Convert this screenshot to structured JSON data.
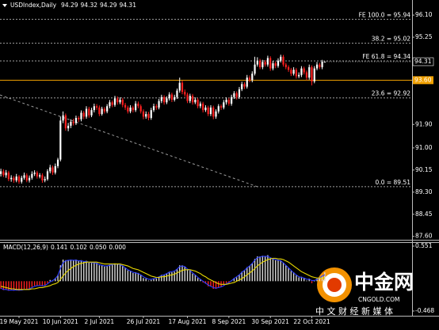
{
  "chart_data": {
    "type": "candlestick",
    "symbol": "USDIndex,Daily",
    "categories": [
      null,
      null,
      null,
      null,
      null,
      null,
      null,
      "19 May 2021",
      null,
      null,
      null,
      null,
      null,
      null,
      null,
      null,
      null,
      null,
      null,
      null,
      null,
      null,
      null,
      "10 Jun 2021",
      null,
      null,
      null,
      null,
      null,
      null,
      null,
      null,
      null,
      null,
      null,
      null,
      null,
      null,
      "2 Jul 2021",
      null,
      null,
      null,
      null,
      null,
      null,
      null,
      null,
      null,
      null,
      null,
      null,
      null,
      null,
      null,
      null,
      "26 Jul 2021",
      null,
      null,
      null,
      null,
      null,
      null,
      null,
      null,
      null,
      null,
      null,
      null,
      null,
      null,
      null,
      null,
      "17 Aug 2021",
      null,
      null,
      null,
      null,
      null,
      null,
      null,
      null,
      null,
      null,
      null,
      null,
      null,
      null,
      null,
      "8 Sep 2021",
      null,
      null,
      null,
      null,
      null,
      null,
      null,
      null,
      null,
      null,
      null,
      null,
      null,
      null,
      null,
      "30 Sep 2021",
      null,
      null,
      null,
      null,
      null,
      null,
      null,
      null,
      null,
      null,
      null,
      null,
      null,
      null,
      null,
      "22 Oct 2021",
      null,
      null,
      null,
      null,
      null
    ],
    "ohlc": [
      [
        90.0,
        90.2,
        89.9,
        90.1
      ],
      [
        90.1,
        90.18,
        89.88,
        89.95
      ],
      [
        89.95,
        90.15,
        89.85,
        90.05
      ],
      [
        90.05,
        90.12,
        89.72,
        89.8
      ],
      [
        89.8,
        89.95,
        89.7,
        89.85
      ],
      [
        89.85,
        89.92,
        89.66,
        89.75
      ],
      [
        89.75,
        90.0,
        89.68,
        89.9
      ],
      [
        89.9,
        89.96,
        89.62,
        89.7
      ],
      [
        89.7,
        89.93,
        89.63,
        89.85
      ],
      [
        89.85,
        90.05,
        89.78,
        89.95
      ],
      [
        89.95,
        90.02,
        89.68,
        89.75
      ],
      [
        89.75,
        89.94,
        89.67,
        89.85
      ],
      [
        89.85,
        90.1,
        89.78,
        90.0
      ],
      [
        90.0,
        90.14,
        89.92,
        90.05
      ],
      [
        90.05,
        90.12,
        89.82,
        89.9
      ],
      [
        89.9,
        90.03,
        89.83,
        89.95
      ],
      [
        89.95,
        90.02,
        89.66,
        89.75
      ],
      [
        89.75,
        89.9,
        89.68,
        89.8
      ],
      [
        89.8,
        90.18,
        89.74,
        90.1
      ],
      [
        90.1,
        90.35,
        90.02,
        90.25
      ],
      [
        90.25,
        90.32,
        89.96,
        90.05
      ],
      [
        90.05,
        90.4,
        89.98,
        90.3
      ],
      [
        90.3,
        90.62,
        90.22,
        90.55
      ],
      [
        90.55,
        92.2,
        90.48,
        92.05
      ],
      [
        92.05,
        92.4,
        91.95,
        92.25
      ],
      [
        92.25,
        92.32,
        91.66,
        91.75
      ],
      [
        91.75,
        91.96,
        91.64,
        91.85
      ],
      [
        91.85,
        92.1,
        91.76,
        92.0
      ],
      [
        92.0,
        92.12,
        91.86,
        91.95
      ],
      [
        91.95,
        92.24,
        91.88,
        92.15
      ],
      [
        92.15,
        92.22,
        92.0,
        92.1
      ],
      [
        92.1,
        92.44,
        92.02,
        92.35
      ],
      [
        92.35,
        92.42,
        92.1,
        92.2
      ],
      [
        92.2,
        92.6,
        92.12,
        92.5
      ],
      [
        92.5,
        92.58,
        92.16,
        92.25
      ],
      [
        92.25,
        92.54,
        92.18,
        92.45
      ],
      [
        92.45,
        92.7,
        92.36,
        92.6
      ],
      [
        92.6,
        92.68,
        92.46,
        92.55
      ],
      [
        92.55,
        92.63,
        92.22,
        92.3
      ],
      [
        92.3,
        92.58,
        92.24,
        92.5
      ],
      [
        92.5,
        92.57,
        92.32,
        92.4
      ],
      [
        92.4,
        92.68,
        92.33,
        92.6
      ],
      [
        92.6,
        92.84,
        92.52,
        92.75
      ],
      [
        92.75,
        92.82,
        92.56,
        92.65
      ],
      [
        92.65,
        93.0,
        92.58,
        92.9
      ],
      [
        92.9,
        92.98,
        92.66,
        92.75
      ],
      [
        92.75,
        92.94,
        92.68,
        92.85
      ],
      [
        92.85,
        92.92,
        92.56,
        92.65
      ],
      [
        92.65,
        92.73,
        92.46,
        92.55
      ],
      [
        92.55,
        92.62,
        92.32,
        92.4
      ],
      [
        92.4,
        92.64,
        92.33,
        92.55
      ],
      [
        92.55,
        92.62,
        92.36,
        92.45
      ],
      [
        92.45,
        92.8,
        92.38,
        92.7
      ],
      [
        92.7,
        92.78,
        92.52,
        92.6
      ],
      [
        92.6,
        92.67,
        92.32,
        92.4
      ],
      [
        92.4,
        92.48,
        92.1,
        92.2
      ],
      [
        92.2,
        92.4,
        92.12,
        92.3
      ],
      [
        92.3,
        92.38,
        92.06,
        92.15
      ],
      [
        92.15,
        92.54,
        92.08,
        92.45
      ],
      [
        92.45,
        92.7,
        92.38,
        92.6
      ],
      [
        92.6,
        92.68,
        92.46,
        92.55
      ],
      [
        92.55,
        92.88,
        92.48,
        92.8
      ],
      [
        92.8,
        93.04,
        92.72,
        92.95
      ],
      [
        92.95,
        93.02,
        92.66,
        92.75
      ],
      [
        92.75,
        92.98,
        92.68,
        92.9
      ],
      [
        92.9,
        93.14,
        92.82,
        93.05
      ],
      [
        93.05,
        93.12,
        92.76,
        92.85
      ],
      [
        92.85,
        93.04,
        92.78,
        92.95
      ],
      [
        92.95,
        93.28,
        92.88,
        93.2
      ],
      [
        93.2,
        93.7,
        93.12,
        93.5
      ],
      [
        93.5,
        93.58,
        93.06,
        93.15
      ],
      [
        93.15,
        93.24,
        92.96,
        93.05
      ],
      [
        93.05,
        93.12,
        92.72,
        92.8
      ],
      [
        92.8,
        93.08,
        92.72,
        93.0
      ],
      [
        93.0,
        93.07,
        92.66,
        92.75
      ],
      [
        92.75,
        92.94,
        92.68,
        92.85
      ],
      [
        92.85,
        92.92,
        92.52,
        92.6
      ],
      [
        92.6,
        92.78,
        92.52,
        92.7
      ],
      [
        92.7,
        92.77,
        92.36,
        92.45
      ],
      [
        92.45,
        92.64,
        92.38,
        92.55
      ],
      [
        92.55,
        92.62,
        92.22,
        92.3
      ],
      [
        92.3,
        92.64,
        92.22,
        92.55
      ],
      [
        92.55,
        92.62,
        92.1,
        92.2
      ],
      [
        92.2,
        92.48,
        92.12,
        92.4
      ],
      [
        92.4,
        92.68,
        92.32,
        92.6
      ],
      [
        92.6,
        92.67,
        92.46,
        92.55
      ],
      [
        92.55,
        92.84,
        92.48,
        92.75
      ],
      [
        92.75,
        92.94,
        92.66,
        92.85
      ],
      [
        92.85,
        92.92,
        92.62,
        92.7
      ],
      [
        92.7,
        93.04,
        92.62,
        92.95
      ],
      [
        92.95,
        93.18,
        92.88,
        93.1
      ],
      [
        93.1,
        93.17,
        92.86,
        92.95
      ],
      [
        92.95,
        93.34,
        92.88,
        93.25
      ],
      [
        93.25,
        93.54,
        93.18,
        93.45
      ],
      [
        93.45,
        93.52,
        93.26,
        93.35
      ],
      [
        93.35,
        93.8,
        93.28,
        93.7
      ],
      [
        93.7,
        93.78,
        93.52,
        93.6
      ],
      [
        93.6,
        93.94,
        93.52,
        93.85
      ],
      [
        93.85,
        94.5,
        93.78,
        94.2
      ],
      [
        94.2,
        94.48,
        94.12,
        94.35
      ],
      [
        94.35,
        94.42,
        94.02,
        94.1
      ],
      [
        94.1,
        94.38,
        94.02,
        94.3
      ],
      [
        94.3,
        94.37,
        94.12,
        94.2
      ],
      [
        94.2,
        94.54,
        94.12,
        94.45
      ],
      [
        94.45,
        94.52,
        93.96,
        94.05
      ],
      [
        94.05,
        94.34,
        93.98,
        94.25
      ],
      [
        94.25,
        94.32,
        94.06,
        94.15
      ],
      [
        94.15,
        94.44,
        94.08,
        94.35
      ],
      [
        94.35,
        94.58,
        94.28,
        94.5
      ],
      [
        94.5,
        94.57,
        94.12,
        94.2
      ],
      [
        94.2,
        94.27,
        94.02,
        94.1
      ],
      [
        94.1,
        94.17,
        93.92,
        94.0
      ],
      [
        94.0,
        94.07,
        93.76,
        93.85
      ],
      [
        93.85,
        94.1,
        93.78,
        94.0
      ],
      [
        94.0,
        94.07,
        93.66,
        93.75
      ],
      [
        93.75,
        93.9,
        93.68,
        93.8
      ],
      [
        93.8,
        94.14,
        93.72,
        94.05
      ],
      [
        94.05,
        94.12,
        93.82,
        93.9
      ],
      [
        93.9,
        93.97,
        93.6,
        93.7
      ],
      [
        93.7,
        94.2,
        93.62,
        94.1
      ],
      [
        94.1,
        94.17,
        93.4,
        93.55
      ],
      [
        93.55,
        94.14,
        93.48,
        94.05
      ],
      [
        94.05,
        94.3,
        93.98,
        94.2
      ],
      [
        94.2,
        94.27,
        94.02,
        94.1
      ],
      [
        94.1,
        94.38,
        94.02,
        94.31
      ],
      [
        94.29,
        94.32,
        94.29,
        94.31
      ]
    ],
    "up_color": "#ffffff",
    "down_color": "#ff2020",
    "ylim": [
      87.47,
      96.68
    ],
    "yticks": [
      {
        "value": 96.1,
        "label": "96.10"
      },
      95.25,
      {
        "value": 91.9,
        "label": "91.90"
      },
      {
        "value": 91,
        "label": "91.00"
      },
      90.15,
      {
        "value": 89.3,
        "label": "89.30"
      },
      88.45,
      {
        "value": 87.6,
        "label": "87.60"
      }
    ],
    "hline": {
      "value": 93.6,
      "label": "93.60",
      "color": "#f0a000"
    },
    "fibo": [
      {
        "label": "FE 100.0 = 95.94",
        "value": 95.94
      },
      {
        "label": "38.2 = 95.02",
        "value": 95.02
      },
      {
        "label": "FE 61.8 = 94.34",
        "value": 94.34
      },
      {
        "label": "23.6 = 92.92",
        "value": 92.92
      },
      {
        "label": "0.0 = 89.51",
        "value": 89.51
      }
    ],
    "fibo_color": "#a0a0a0",
    "macd": {
      "label": "MACD(12,26,9)",
      "readout": [
        0.141,
        0.102,
        {
          "value": 0.05,
          "label": "0.050"
        },
        {
          "value": 0,
          "label": "0.000"
        }
      ],
      "ylim": [
        -0.468,
        0.551
      ],
      "yticks": [
        0.551,
        -0.468
      ],
      "hist_up_color": "#d8d8d8",
      "hist_down_color": "#ff2020",
      "main_color": "#2a3cff",
      "signal_color": "#e8d800",
      "hist": [
        -0.12,
        -0.14,
        -0.13,
        -0.15,
        -0.14,
        -0.15,
        -0.13,
        -0.15,
        -0.14,
        -0.12,
        -0.13,
        -0.12,
        -0.09,
        -0.07,
        -0.07,
        -0.06,
        -0.08,
        -0.07,
        -0.03,
        0.02,
        0.01,
        0.05,
        0.1,
        0.25,
        0.34,
        0.33,
        0.33,
        0.34,
        0.33,
        0.34,
        0.32,
        0.33,
        0.31,
        0.32,
        0.29,
        0.29,
        0.3,
        0.29,
        0.25,
        0.25,
        0.23,
        0.24,
        0.26,
        0.26,
        0.28,
        0.27,
        0.27,
        0.24,
        0.21,
        0.17,
        0.16,
        0.13,
        0.14,
        0.13,
        0.1,
        0.05,
        0.04,
        0.01,
        0.02,
        0.04,
        0.04,
        0.07,
        0.1,
        0.1,
        0.12,
        0.15,
        0.14,
        0.15,
        0.19,
        0.25,
        0.25,
        0.23,
        0.18,
        0.17,
        0.12,
        0.1,
        0.05,
        0.03,
        -0.02,
        -0.04,
        -0.08,
        -0.08,
        -0.12,
        -0.12,
        -0.1,
        -0.09,
        -0.06,
        -0.03,
        -0.03,
        0.01,
        0.05,
        0.06,
        0.1,
        0.15,
        0.17,
        0.22,
        0.24,
        0.28,
        0.35,
        0.39,
        0.39,
        0.4,
        0.39,
        0.41,
        0.37,
        0.36,
        0.33,
        0.33,
        0.33,
        0.29,
        0.25,
        0.21,
        0.16,
        0.14,
        0.09,
        0.06,
        0.07,
        0.05,
        0.01,
        0.04,
        -0.03,
        0.0,
        0.04,
        0.05,
        0.09,
        0.14
      ],
      "main": [
        -0.11,
        -0.13,
        -0.13,
        -0.14,
        -0.14,
        -0.14,
        -0.14,
        -0.14,
        -0.14,
        -0.13,
        -0.13,
        -0.12,
        -0.1,
        -0.08,
        -0.07,
        -0.07,
        -0.07,
        -0.07,
        -0.04,
        -0.01,
        0.01,
        0.04,
        0.09,
        0.2,
        0.29,
        0.32,
        0.33,
        0.33,
        0.33,
        0.33,
        0.32,
        0.32,
        0.31,
        0.31,
        0.3,
        0.29,
        0.29,
        0.28,
        0.26,
        0.25,
        0.24,
        0.24,
        0.25,
        0.26,
        0.27,
        0.27,
        0.26,
        0.24,
        0.21,
        0.18,
        0.16,
        0.14,
        0.13,
        0.12,
        0.1,
        0.07,
        0.05,
        0.03,
        0.03,
        0.04,
        0.05,
        0.07,
        0.09,
        0.1,
        0.12,
        0.14,
        0.15,
        0.16,
        0.19,
        0.23,
        0.24,
        0.23,
        0.19,
        0.17,
        0.13,
        0.1,
        0.06,
        0.03,
        0.0,
        -0.03,
        -0.06,
        -0.08,
        -0.1,
        -0.11,
        -0.1,
        -0.09,
        -0.07,
        -0.04,
        -0.02,
        0.01,
        0.04,
        0.07,
        0.1,
        0.14,
        0.17,
        0.21,
        0.24,
        0.28,
        0.33,
        0.37,
        0.38,
        0.39,
        0.39,
        0.39,
        0.37,
        0.35,
        0.34,
        0.33,
        0.32,
        0.29,
        0.25,
        0.21,
        0.17,
        0.13,
        0.1,
        0.07,
        0.06,
        0.05,
        0.03,
        0.03,
        0.01,
        0.01,
        0.03,
        0.05,
        0.08,
        0.1
      ],
      "signal": [
        -0.08,
        -0.09,
        -0.1,
        -0.11,
        -0.12,
        -0.12,
        -0.13,
        -0.13,
        -0.13,
        -0.13,
        -0.13,
        -0.13,
        -0.12,
        -0.12,
        -0.11,
        -0.1,
        -0.1,
        -0.09,
        -0.08,
        -0.07,
        -0.05,
        -0.04,
        -0.02,
        0.03,
        0.08,
        0.13,
        0.17,
        0.2,
        0.23,
        0.25,
        0.27,
        0.28,
        0.29,
        0.3,
        0.3,
        0.3,
        0.3,
        0.3,
        0.29,
        0.28,
        0.27,
        0.27,
        0.27,
        0.27,
        0.27,
        0.27,
        0.27,
        0.26,
        0.25,
        0.24,
        0.22,
        0.2,
        0.19,
        0.18,
        0.16,
        0.14,
        0.12,
        0.1,
        0.08,
        0.07,
        0.06,
        0.06,
        0.07,
        0.07,
        0.08,
        0.09,
        0.1,
        0.11,
        0.13,
        0.15,
        0.17,
        0.18,
        0.18,
        0.18,
        0.17,
        0.16,
        0.14,
        0.12,
        0.09,
        0.07,
        0.04,
        0.02,
        0.0,
        -0.02,
        -0.04,
        -0.05,
        -0.05,
        -0.05,
        -0.04,
        -0.03,
        -0.02,
        0.0,
        0.02,
        0.04,
        0.07,
        0.1,
        0.13,
        0.16,
        0.2,
        0.24,
        0.27,
        0.3,
        0.32,
        0.34,
        0.35,
        0.36,
        0.36,
        0.35,
        0.35,
        0.34,
        0.32,
        0.3,
        0.27,
        0.24,
        0.21,
        0.18,
        0.15,
        0.13,
        0.11,
        0.09,
        0.07,
        0.06,
        0.05,
        0.05,
        0.05,
        0.05
      ]
    },
    "watermark": {
      "name": "中金网",
      "site": "CNGOLD.COM",
      "slogan": "中 文 财 经 新 媒 体"
    }
  }
}
